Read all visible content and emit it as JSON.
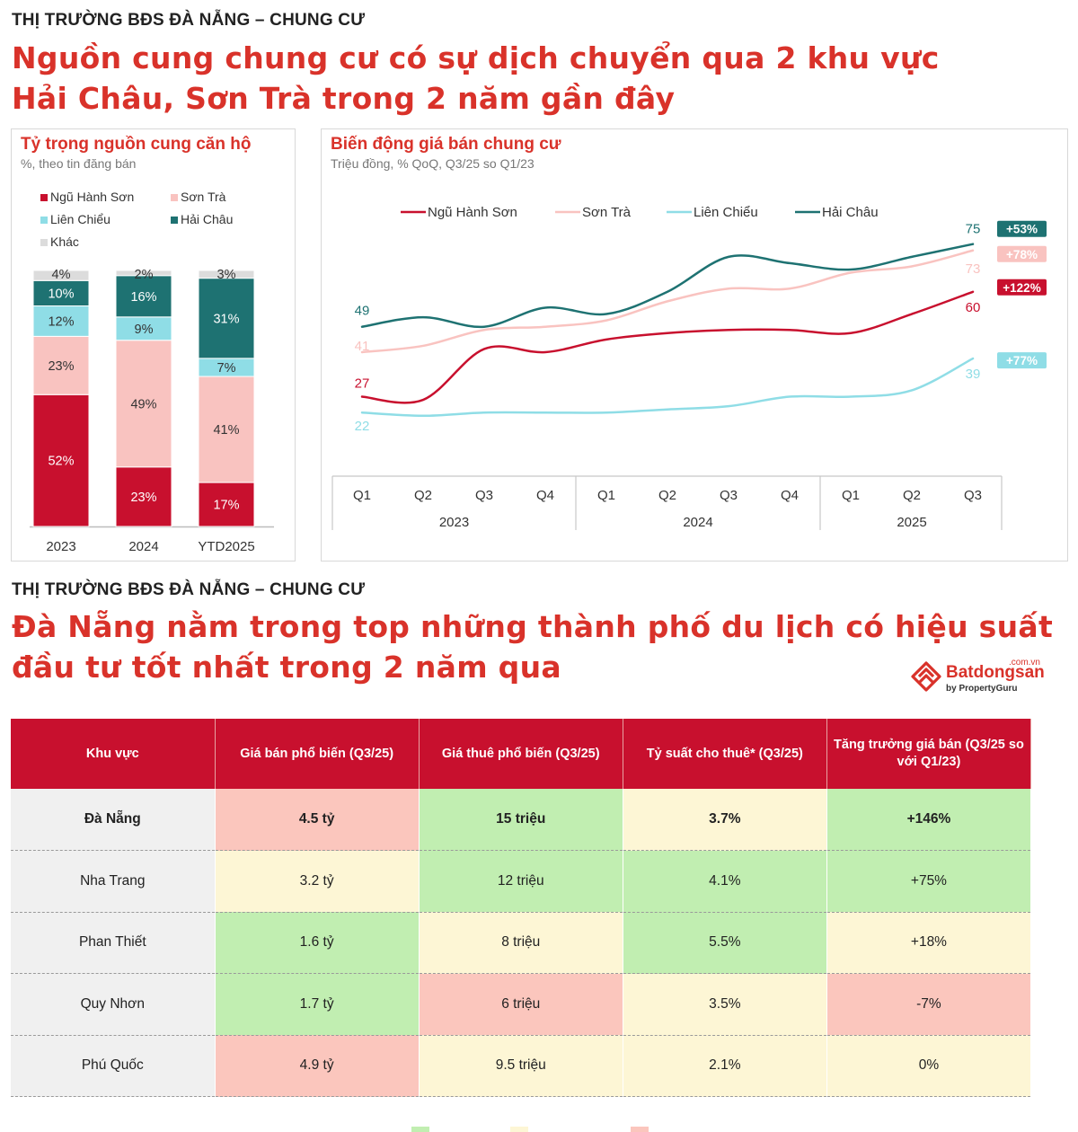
{
  "section1": {
    "kicker": "THỊ TRƯỜNG BĐS ĐÀ NẴNG – CHUNG CƯ",
    "headline_line1": "Nguồn cung chung cư có sự dịch chuyển qua 2 khu vực",
    "headline_line2": "Hải Châu, Sơn Trà trong 2 năm gần đây"
  },
  "section2": {
    "kicker": "THỊ TRƯỜNG BĐS ĐÀ NẴNG – CHUNG CƯ",
    "headline_line1": "Đà Nẵng nằm trong top những thành phố du lịch có hiệu suất",
    "headline_line2": "đầu tư tốt nhất trong 2 năm qua"
  },
  "colors": {
    "ngu_hanh_son": "#c8102e",
    "son_tra": "#f9c3c0",
    "lien_chieu": "#8fdde6",
    "hai_chau": "#1e7272",
    "khac": "#dcdcdc",
    "accent": "#d9322a"
  },
  "logo": {
    "domain": ".com.vn",
    "name": "Batdongsan",
    "by": "by PropertyGuru"
  },
  "chart_data": [
    {
      "type": "bar",
      "stacked": true,
      "title": "Tỷ trọng nguồn cung căn hộ",
      "subtitle": "%, theo tin đăng bán",
      "categories": [
        "2023",
        "2024",
        "YTD2025"
      ],
      "legend": [
        "Ngũ Hành Sơn",
        "Sơn Trà",
        "Liên Chiểu",
        "Hải Châu",
        "Khác"
      ],
      "legend_position": "top",
      "series": [
        {
          "name": "Ngũ Hành Sơn",
          "values": [
            52,
            23,
            17
          ],
          "labels": [
            "52%",
            "23%",
            "17%"
          ]
        },
        {
          "name": "Sơn Trà",
          "values": [
            23,
            49,
            41
          ],
          "labels": [
            "23%",
            "49%",
            "41%"
          ]
        },
        {
          "name": "Liên Chiểu",
          "values": [
            12,
            9,
            7
          ],
          "labels": [
            "12%",
            "9%",
            "7%"
          ]
        },
        {
          "name": "Hải Châu",
          "values": [
            10,
            16,
            31
          ],
          "labels": [
            "10%",
            "16%",
            "31%"
          ]
        },
        {
          "name": "Khác",
          "values": [
            4,
            2,
            3
          ],
          "labels": [
            "4%",
            "2%",
            "3%"
          ]
        }
      ]
    },
    {
      "type": "line",
      "title": "Biến động giá bán chung cư",
      "subtitle": "Triệu đồng, % QoQ, Q3/25 so Q1/23",
      "x": [
        "Q1",
        "Q2",
        "Q3",
        "Q4",
        "Q1",
        "Q2",
        "Q3",
        "Q4",
        "Q1",
        "Q2",
        "Q3"
      ],
      "year_groups": [
        {
          "label": "2023",
          "count": 4
        },
        {
          "label": "2024",
          "count": 4
        },
        {
          "label": "2025",
          "count": 3
        }
      ],
      "ylim": [
        15,
        80
      ],
      "legend_position": "top",
      "series": [
        {
          "name": "Ngũ Hành Sơn",
          "values": [
            27,
            26,
            42,
            41,
            45,
            47,
            48,
            48,
            47,
            53,
            60
          ],
          "start_label": "27",
          "end_label": "60",
          "change": "+122%"
        },
        {
          "name": "Sơn Trà",
          "values": [
            41,
            43,
            48,
            49,
            51,
            57,
            61,
            61,
            66,
            68,
            73
          ],
          "start_label": "41",
          "end_label": "73",
          "change": "+78%"
        },
        {
          "name": "Liên Chiểu",
          "values": [
            22,
            21,
            22,
            22,
            22,
            23,
            24,
            27,
            27,
            29,
            39
          ],
          "start_label": "22",
          "end_label": "39",
          "change": "+77%"
        },
        {
          "name": "Hải Châu",
          "values": [
            49,
            52,
            49,
            55,
            53,
            60,
            71,
            69,
            67,
            71,
            75
          ],
          "start_label": "49",
          "end_label": "75",
          "change": "+53%"
        }
      ]
    },
    {
      "type": "table",
      "columns": [
        "Khu vực",
        "Giá bán phổ biến (Q3/25)",
        "Giá thuê phổ biến (Q3/25)",
        "Tỷ suất cho thuê* (Q3/25)",
        "Tăng trưởng giá bán (Q3/25 so với Q1/23)"
      ],
      "rows": [
        {
          "region": "Đà Nẵng",
          "cells": [
            "4.5 tỷ",
            "15 triệu",
            "3.7%",
            "+146%"
          ],
          "ratings": [
            "r",
            "g",
            "y",
            "g"
          ]
        },
        {
          "region": "Nha Trang",
          "cells": [
            "3.2 tỷ",
            "12 triệu",
            "4.1%",
            "+75%"
          ],
          "ratings": [
            "y",
            "g",
            "g",
            "g"
          ]
        },
        {
          "region": "Phan Thiết",
          "cells": [
            "1.6 tỷ",
            "8 triệu",
            "5.5%",
            "+18%"
          ],
          "ratings": [
            "g",
            "y",
            "g",
            "y"
          ]
        },
        {
          "region": "Quy Nhơn",
          "cells": [
            "1.7 tỷ",
            "6 triệu",
            "3.5%",
            "-7%"
          ],
          "ratings": [
            "g",
            "r",
            "y",
            "r"
          ]
        },
        {
          "region": "Phú Quốc",
          "cells": [
            "4.9 tỷ",
            "9.5 triệu",
            "2.1%",
            "0%"
          ],
          "ratings": [
            "r",
            "y",
            "y",
            "y"
          ]
        }
      ]
    }
  ]
}
